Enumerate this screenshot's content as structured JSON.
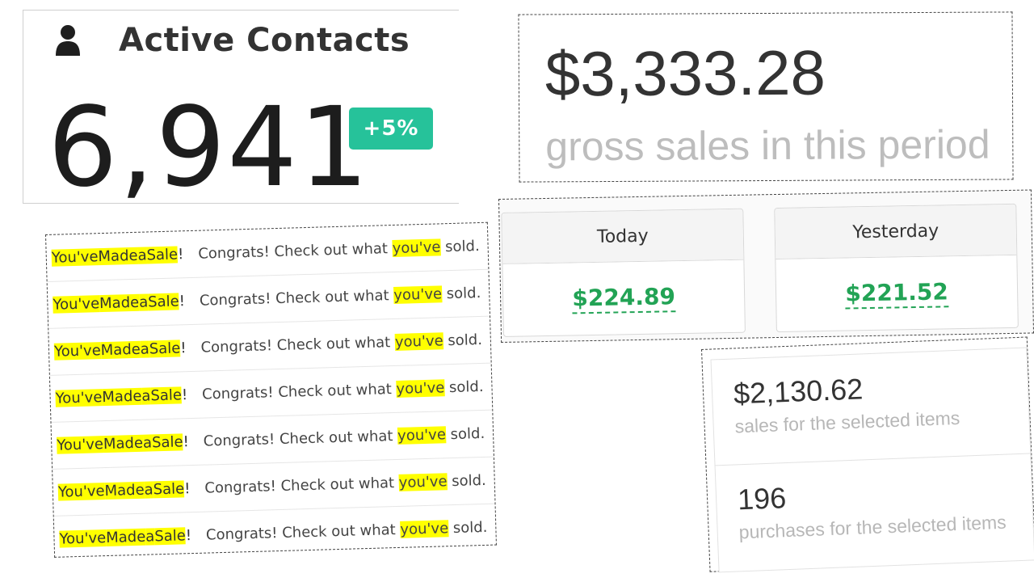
{
  "contacts": {
    "title": "Active Contacts",
    "count": "6,941",
    "badge": "+5%",
    "icon": "user-icon",
    "badge_color": "#26c29a"
  },
  "gross": {
    "amount": "$3,333.28",
    "label": "gross sales in this period"
  },
  "sales_feed": [
    {
      "part1": "You've",
      "part2": "Made",
      "part3": "a",
      "part4": "Sale",
      "part5": "!",
      "msg1": "Congrats! Check out what",
      "msg2": "you've",
      "msg3": "sold."
    },
    {
      "part1": "You've",
      "part2": "Made",
      "part3": "a",
      "part4": "Sale",
      "part5": "!",
      "msg1": "Congrats! Check out what",
      "msg2": "you've",
      "msg3": "sold."
    },
    {
      "part1": "You've",
      "part2": "Made",
      "part3": "a",
      "part4": "Sale",
      "part5": "!",
      "msg1": "Congrats! Check out what",
      "msg2": "you've",
      "msg3": "sold."
    },
    {
      "part1": "You've",
      "part2": "Made",
      "part3": "a",
      "part4": "Sale",
      "part5": "!",
      "msg1": "Congrats! Check out what",
      "msg2": "you've",
      "msg3": "sold."
    },
    {
      "part1": "You've",
      "part2": "Made",
      "part3": "a",
      "part4": "Sale",
      "part5": "!",
      "msg1": "Congrats! Check out what",
      "msg2": "you've",
      "msg3": "sold."
    },
    {
      "part1": "You've",
      "part2": "Made",
      "part3": "a",
      "part4": "Sale",
      "part5": "!",
      "msg1": "Congrats! Check out what",
      "msg2": "you've",
      "msg3": "sold."
    },
    {
      "part1": "You've",
      "part2": "Made",
      "part3": "a",
      "part4": "Sale",
      "part5": "!",
      "msg1": "Congrats! Check out what",
      "msg2": "you've",
      "msg3": "sold."
    }
  ],
  "daily": {
    "today_label": "Today",
    "today_value": "$224.89",
    "yesterday_label": "Yesterday",
    "yesterday_value": "$221.52",
    "value_color": "#22a355"
  },
  "selected": {
    "sales_value": "$2,130.62",
    "sales_label": "sales for the selected items",
    "purchases_value": "196",
    "purchases_label": "purchases for the selected items"
  },
  "colors": {
    "highlight": "#ffff00"
  }
}
